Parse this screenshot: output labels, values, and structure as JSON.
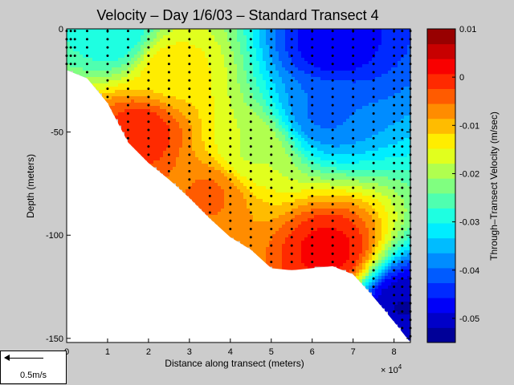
{
  "chart_data": {
    "type": "heatmap",
    "title": "Velocity – Day 1/6/03 – Standard Transect 4",
    "xlabel": "Distance along transect (meters)",
    "ylabel": "Depth (meters)",
    "x_multiplier": "× 10",
    "x_multiplier_exp": "4",
    "xlim": [
      0,
      84000
    ],
    "ylim": [
      -152,
      0
    ],
    "x_ticks": [
      0,
      10000,
      20000,
      30000,
      40000,
      50000,
      60000,
      70000,
      80000
    ],
    "x_tick_labels": [
      "0",
      "1",
      "2",
      "3",
      "4",
      "5",
      "6",
      "7",
      "8"
    ],
    "y_ticks": [
      0,
      -50,
      -100,
      -150
    ],
    "y_tick_labels": [
      "0",
      "-50",
      "-100",
      "-150"
    ],
    "colorbar": {
      "label": "Through–Transect Velocity (m/sec)",
      "range": [
        -0.055,
        0.01
      ],
      "ticks": [
        0.01,
        0,
        -0.01,
        -0.02,
        -0.03,
        -0.04,
        -0.05
      ],
      "tick_labels": [
        "0.01",
        "0",
        "-0.01",
        "-0.02",
        "-0.03",
        "-0.04",
        "-0.05"
      ],
      "levels": 21,
      "colormap": "jet"
    },
    "bottom_depth": [
      [
        0,
        -20
      ],
      [
        5000,
        -24
      ],
      [
        10000,
        -36
      ],
      [
        15000,
        -55
      ],
      [
        20000,
        -65
      ],
      [
        25000,
        -73
      ],
      [
        30000,
        -82
      ],
      [
        35000,
        -92
      ],
      [
        40000,
        -101
      ],
      [
        45000,
        -107
      ],
      [
        50000,
        -116
      ],
      [
        55000,
        -117
      ],
      [
        60000,
        -116
      ],
      [
        65000,
        -115
      ],
      [
        70000,
        -119
      ],
      [
        75000,
        -130
      ],
      [
        80000,
        -142
      ],
      [
        84000,
        -152
      ]
    ],
    "velocity_features": [
      {
        "x": 65000,
        "depth": -8,
        "velocity": -0.048
      },
      {
        "x": 63000,
        "depth": -40,
        "velocity": -0.04
      },
      {
        "x": 12000,
        "depth": -3,
        "velocity": -0.03
      },
      {
        "x": 82000,
        "depth": -135,
        "velocity": -0.052
      },
      {
        "x": 64000,
        "depth": -108,
        "velocity": 0.002
      },
      {
        "x": 18000,
        "depth": -50,
        "velocity": 0.0
      },
      {
        "x": 35000,
        "depth": -80,
        "velocity": -0.005
      },
      {
        "x": 45000,
        "depth": -60,
        "velocity": -0.018
      },
      {
        "x": 25000,
        "depth": -20,
        "velocity": -0.013
      }
    ],
    "station_x": [
      0,
      1000,
      2000,
      5000,
      10000,
      15000,
      20000,
      25000,
      30000,
      35000,
      40000,
      45000,
      50000,
      55000,
      60000,
      65000,
      70000,
      75000,
      80000,
      82000,
      84000
    ],
    "sample_spacing_m": 4
  },
  "legend": {
    "scale_label": "0.5m/s"
  },
  "colors": {
    "background": "#cccccc",
    "plot_background": "#ffffff"
  }
}
